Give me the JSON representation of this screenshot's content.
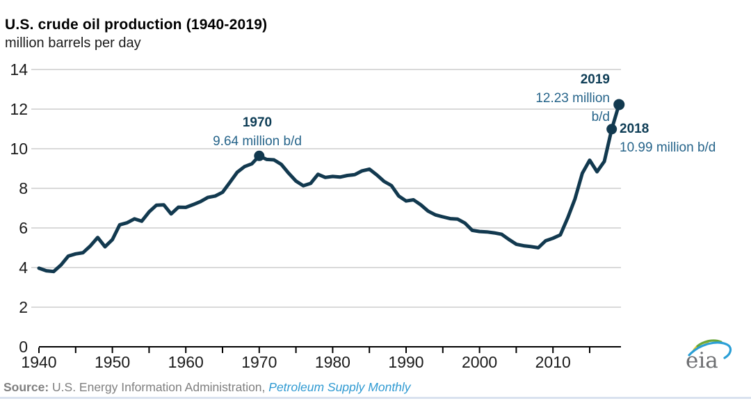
{
  "header": {
    "title": "U.S. crude oil production (1940-2019)",
    "subtitle": "million barrels per day"
  },
  "annotations": {
    "a1970": {
      "year": "1970",
      "value": "9.64 million b/d"
    },
    "a2019": {
      "year": "2019",
      "value_line1": "12.23 million",
      "value_line2": "b/d"
    },
    "a2018": {
      "year": "2018",
      "value": "10.99 million b/d"
    }
  },
  "source": {
    "label": "Source:",
    "agency": " U.S. Energy Information Administration, ",
    "publication": "Petroleum Supply Monthly"
  },
  "logo": {
    "text": "eia"
  },
  "colors": {
    "line": "#12394f",
    "marker": "#12394f",
    "grid": "#d9d9d9",
    "axis": "#000000",
    "tick_label": "#1a1a1a",
    "annotation_year": "#0d3c55",
    "annotation_value": "#26648a",
    "source_gray": "#7f7f7f",
    "publication_blue": "#2f9ad2"
  },
  "chart_data": {
    "type": "line",
    "title": "U.S. crude oil production (1940-2019)",
    "ylabel": "million barrels per day",
    "xlim": [
      1940,
      2019
    ],
    "ylim": [
      0,
      14
    ],
    "grid": "horizontal-on",
    "legend": "none",
    "x_ticks": [
      1940,
      1950,
      1960,
      1970,
      1980,
      1990,
      2000,
      2010
    ],
    "minor_x_tick_step": 5,
    "y_ticks": [
      0,
      2,
      4,
      6,
      8,
      10,
      12,
      14
    ],
    "years": [
      1940,
      1941,
      1942,
      1943,
      1944,
      1945,
      1946,
      1947,
      1948,
      1949,
      1950,
      1951,
      1952,
      1953,
      1954,
      1955,
      1956,
      1957,
      1958,
      1959,
      1960,
      1961,
      1962,
      1963,
      1964,
      1965,
      1966,
      1967,
      1968,
      1969,
      1970,
      1971,
      1972,
      1973,
      1974,
      1975,
      1976,
      1977,
      1978,
      1979,
      1980,
      1981,
      1982,
      1983,
      1984,
      1985,
      1986,
      1987,
      1988,
      1989,
      1990,
      1991,
      1992,
      1993,
      1994,
      1995,
      1996,
      1997,
      1998,
      1999,
      2000,
      2001,
      2002,
      2003,
      2004,
      2005,
      2006,
      2007,
      2008,
      2009,
      2010,
      2011,
      2012,
      2013,
      2014,
      2015,
      2016,
      2017,
      2018,
      2019
    ],
    "values": [
      3.97,
      3.84,
      3.8,
      4.13,
      4.58,
      4.69,
      4.75,
      5.09,
      5.52,
      5.05,
      5.41,
      6.16,
      6.26,
      6.46,
      6.34,
      6.81,
      7.15,
      7.17,
      6.71,
      7.05,
      7.04,
      7.18,
      7.33,
      7.54,
      7.61,
      7.8,
      8.3,
      8.81,
      9.1,
      9.24,
      9.64,
      9.46,
      9.44,
      9.21,
      8.77,
      8.37,
      8.13,
      8.25,
      8.71,
      8.55,
      8.6,
      8.57,
      8.65,
      8.69,
      8.88,
      8.97,
      8.68,
      8.35,
      8.14,
      7.61,
      7.36,
      7.42,
      7.17,
      6.85,
      6.66,
      6.56,
      6.47,
      6.45,
      6.25,
      5.88,
      5.82,
      5.8,
      5.75,
      5.68,
      5.42,
      5.18,
      5.1,
      5.06,
      5.0,
      5.35,
      5.48,
      5.65,
      6.5,
      7.47,
      8.76,
      9.42,
      8.84,
      9.36,
      10.99,
      12.23
    ],
    "markers": [
      {
        "x": 1970,
        "y": 9.64
      },
      {
        "x": 2018,
        "y": 10.99
      },
      {
        "x": 2019,
        "y": 12.23
      }
    ]
  }
}
